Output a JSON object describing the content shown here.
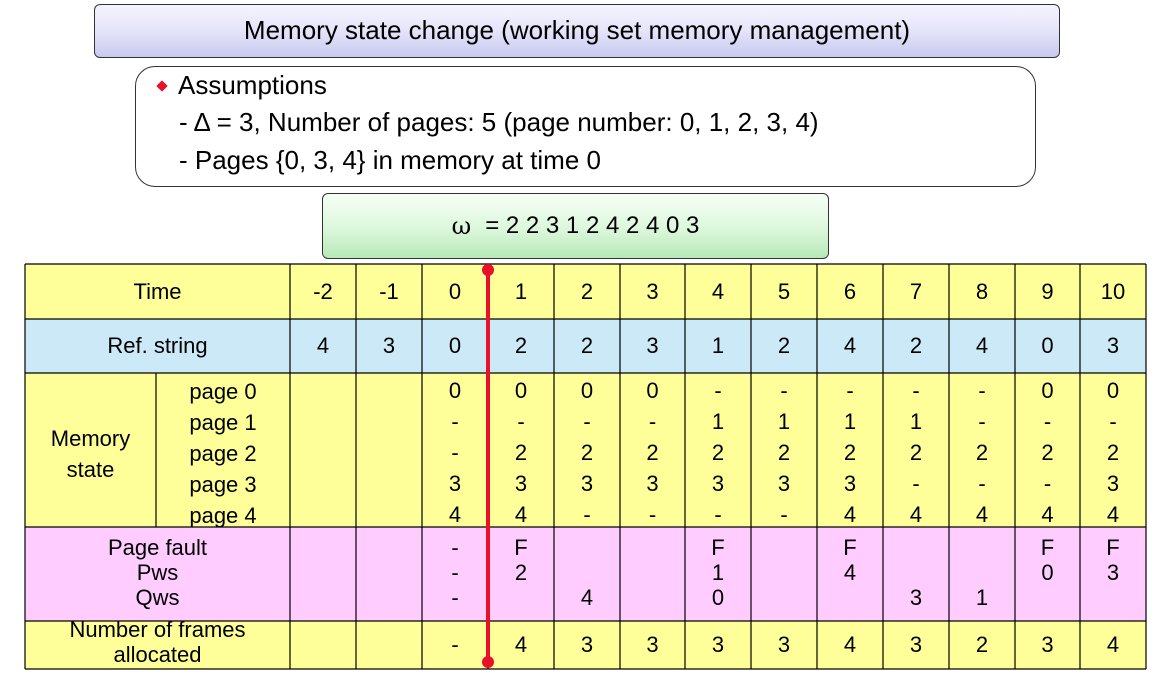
{
  "title": "Memory state change (working set memory management)",
  "assumptions": {
    "heading": "Assumptions",
    "lines": [
      "- Δ = 3, Number of pages: 5 (page number: 0, 1, 2, 3, 4)",
      "- Pages {0, 3, 4} in memory at time 0"
    ]
  },
  "omega": {
    "symbol": "ω",
    "value": "= 2 2 3 1 2 4 2 4 0 3"
  },
  "colors": {
    "yellow": "#ffff99",
    "blue": "#cce9f7",
    "pink": "#ffccff",
    "marker": "#e8102a"
  },
  "table": {
    "row_labels": {
      "time": "Time",
      "ref": "Ref. string",
      "memory": [
        "Memory",
        "state"
      ],
      "pages": [
        "page 0",
        "page 1",
        "page 2",
        "page 3",
        "page 4"
      ],
      "fault": "Page fault",
      "pws": "Pws",
      "qws": "Qws",
      "frames": [
        "Number of frames",
        "allocated"
      ]
    },
    "times": [
      "-2",
      "-1",
      "0",
      "1",
      "2",
      "3",
      "4",
      "5",
      "6",
      "7",
      "8",
      "9",
      "10"
    ],
    "ref_string": [
      "4",
      "3",
      "0",
      "2",
      "2",
      "3",
      "1",
      "2",
      "4",
      "2",
      "4",
      "0",
      "3"
    ],
    "memory": [
      [
        "",
        "",
        "",
        "",
        ""
      ],
      [
        "",
        "",
        "",
        "",
        ""
      ],
      [
        "0",
        "-",
        "-",
        "3",
        "4"
      ],
      [
        "0",
        "-",
        "2",
        "3",
        "4"
      ],
      [
        "0",
        "-",
        "2",
        "3",
        "-"
      ],
      [
        "0",
        "-",
        "2",
        "3",
        "-"
      ],
      [
        "-",
        "1",
        "2",
        "3",
        "-"
      ],
      [
        "-",
        "1",
        "2",
        "3",
        "-"
      ],
      [
        "-",
        "1",
        "2",
        "3",
        "4"
      ],
      [
        "-",
        "1",
        "2",
        "-",
        "4"
      ],
      [
        "-",
        "-",
        "2",
        "-",
        "4"
      ],
      [
        "0",
        "-",
        "2",
        "-",
        "4"
      ],
      [
        "0",
        "-",
        "2",
        "3",
        "4"
      ]
    ],
    "fault": [
      [
        "",
        "",
        ""
      ],
      [
        "",
        "",
        ""
      ],
      [
        "-",
        "-",
        "-"
      ],
      [
        "F",
        "2",
        ""
      ],
      [
        "",
        "",
        "4"
      ],
      [
        "",
        "",
        ""
      ],
      [
        "F",
        "1",
        "0"
      ],
      [
        "",
        "",
        ""
      ],
      [
        "F",
        "4",
        ""
      ],
      [
        "",
        "",
        "3"
      ],
      [
        "",
        "",
        "1"
      ],
      [
        "F",
        "0",
        ""
      ],
      [
        "F",
        "3",
        ""
      ]
    ],
    "frames": [
      "",
      "",
      "-",
      "4",
      "3",
      "3",
      "3",
      "3",
      "4",
      "3",
      "2",
      "3",
      "4"
    ]
  }
}
